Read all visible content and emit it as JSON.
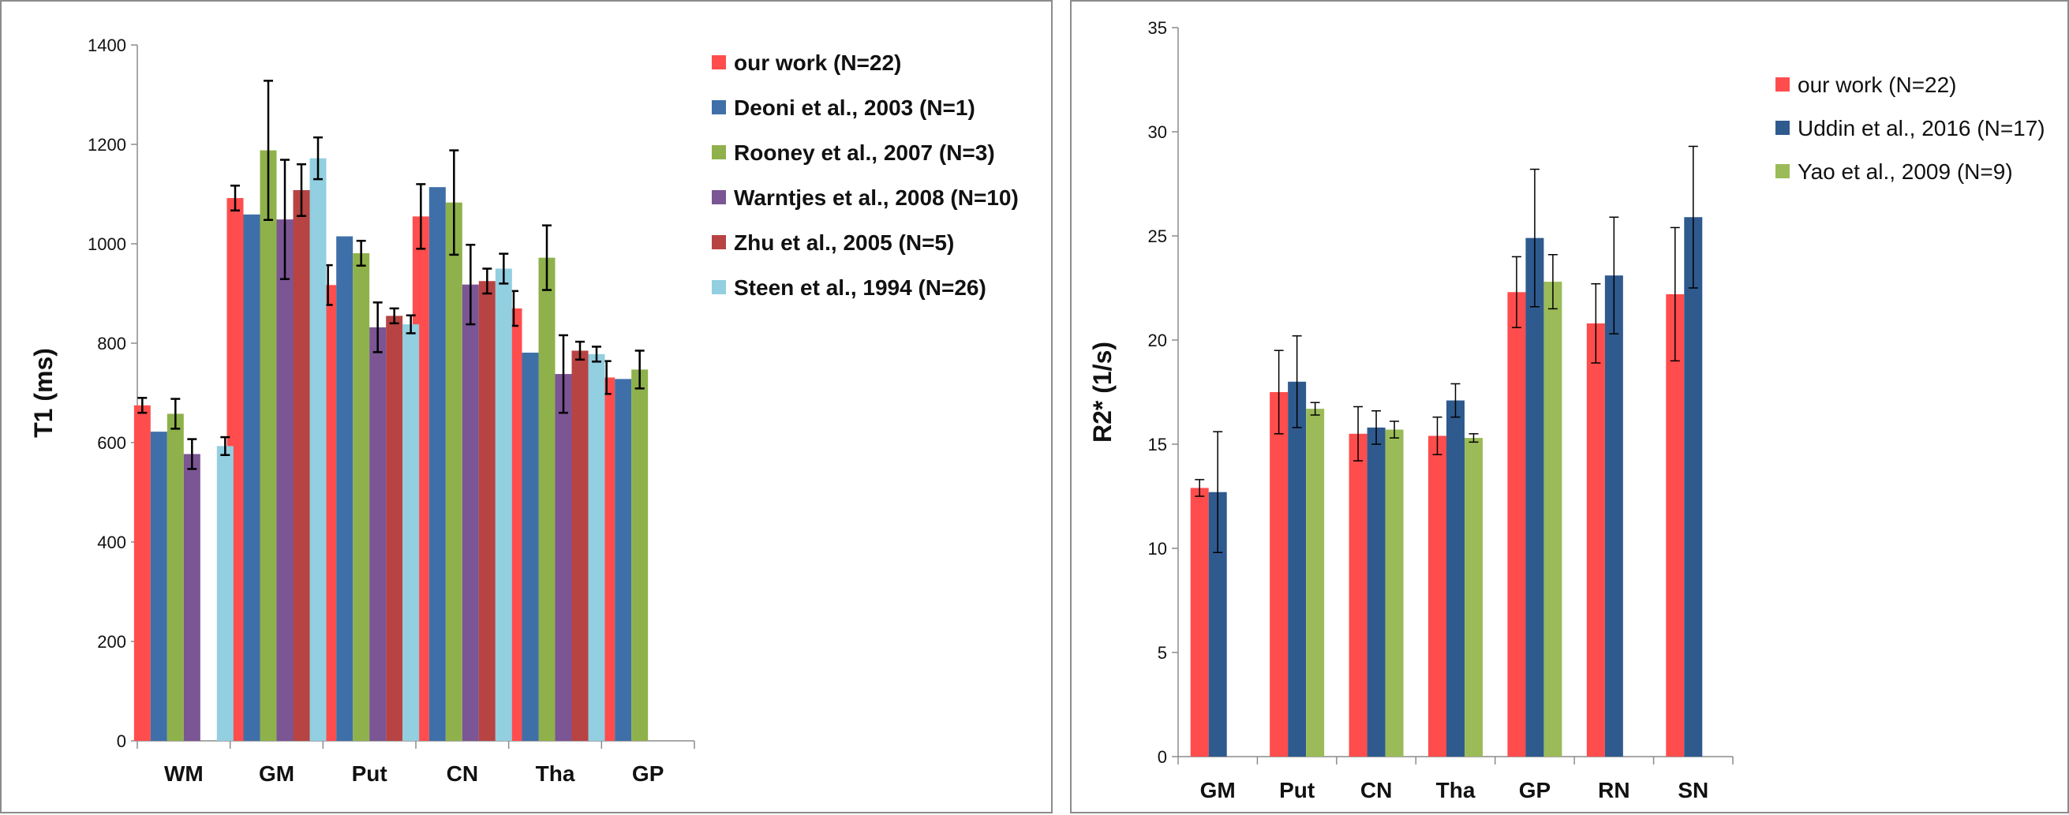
{
  "chart_data": [
    {
      "type": "bar",
      "title": "",
      "xlabel": "",
      "ylabel": "T1 (ms)",
      "ylim": [
        0,
        1400
      ],
      "yticks": [
        0,
        200,
        400,
        600,
        800,
        1000,
        1200,
        1400
      ],
      "categories": [
        "WM",
        "GM",
        "Put",
        "CN",
        "Tha",
        "GP"
      ],
      "legend_position": "top-right",
      "series": [
        {
          "name": "our work (N=22)",
          "color": "#ff4d4d",
          "values": [
            675,
            1092,
            917,
            1055,
            870,
            731
          ],
          "errors": [
            15,
            25,
            40,
            65,
            35,
            33
          ]
        },
        {
          "name": "Deoni et al., 2003 (N=1)",
          "color": "#3f6fa8",
          "values": [
            622,
            1059,
            1015,
            1114,
            781,
            728
          ],
          "errors": [
            null,
            null,
            null,
            null,
            null,
            null
          ]
        },
        {
          "name": "Rooney et al., 2007 (N=3)",
          "color": "#8fb14b",
          "values": [
            658,
            1188,
            981,
            1083,
            972,
            747
          ],
          "errors": [
            30,
            140,
            25,
            105,
            65,
            38
          ]
        },
        {
          "name": "Warntjes et al., 2008 (N=10)",
          "color": "#7b5594",
          "values": [
            577,
            1049,
            832,
            918,
            738,
            null
          ],
          "errors": [
            30,
            120,
            50,
            80,
            78,
            null
          ]
        },
        {
          "name": "Zhu et al., 2005 (N=5)",
          "color": "#b84343",
          "values": [
            null,
            1108,
            855,
            925,
            785,
            null
          ],
          "errors": [
            null,
            52,
            15,
            25,
            18,
            null
          ]
        },
        {
          "name": "Steen et al., 1994 (N=26)",
          "color": "#92cfe0",
          "values": [
            593,
            1172,
            838,
            950,
            778,
            null
          ],
          "errors": [
            18,
            42,
            18,
            30,
            15,
            null
          ]
        }
      ]
    },
    {
      "type": "bar",
      "title": "",
      "xlabel": "",
      "ylabel": "R2* (1/s)",
      "ylim": [
        0,
        35
      ],
      "yticks": [
        0,
        5,
        10,
        15,
        20,
        25,
        30,
        35
      ],
      "categories": [
        "GM",
        "Put",
        "CN",
        "Tha",
        "GP",
        "RN",
        "SN"
      ],
      "legend_position": "top-right",
      "series": [
        {
          "name": "our work (N=22)",
          "color": "#ff4d4d",
          "values": [
            12.9,
            17.5,
            15.5,
            15.4,
            22.3,
            20.8,
            22.2
          ],
          "errors": [
            0.4,
            2.0,
            1.3,
            0.9,
            1.7,
            1.9,
            3.2
          ]
        },
        {
          "name": "Uddin et al., 2016 (N=17)",
          "color": "#2f5a8e",
          "values": [
            12.7,
            18.0,
            15.8,
            17.1,
            24.9,
            23.1,
            25.9
          ],
          "errors": [
            2.9,
            2.2,
            0.8,
            0.8,
            3.3,
            2.8,
            3.4
          ]
        },
        {
          "name": "Yao et al., 2009 (N=9)",
          "color": "#9bbb59",
          "values": [
            null,
            16.7,
            15.7,
            15.3,
            22.8,
            null,
            null
          ],
          "errors": [
            null,
            0.3,
            0.4,
            0.2,
            1.3,
            null,
            null
          ]
        }
      ]
    }
  ]
}
